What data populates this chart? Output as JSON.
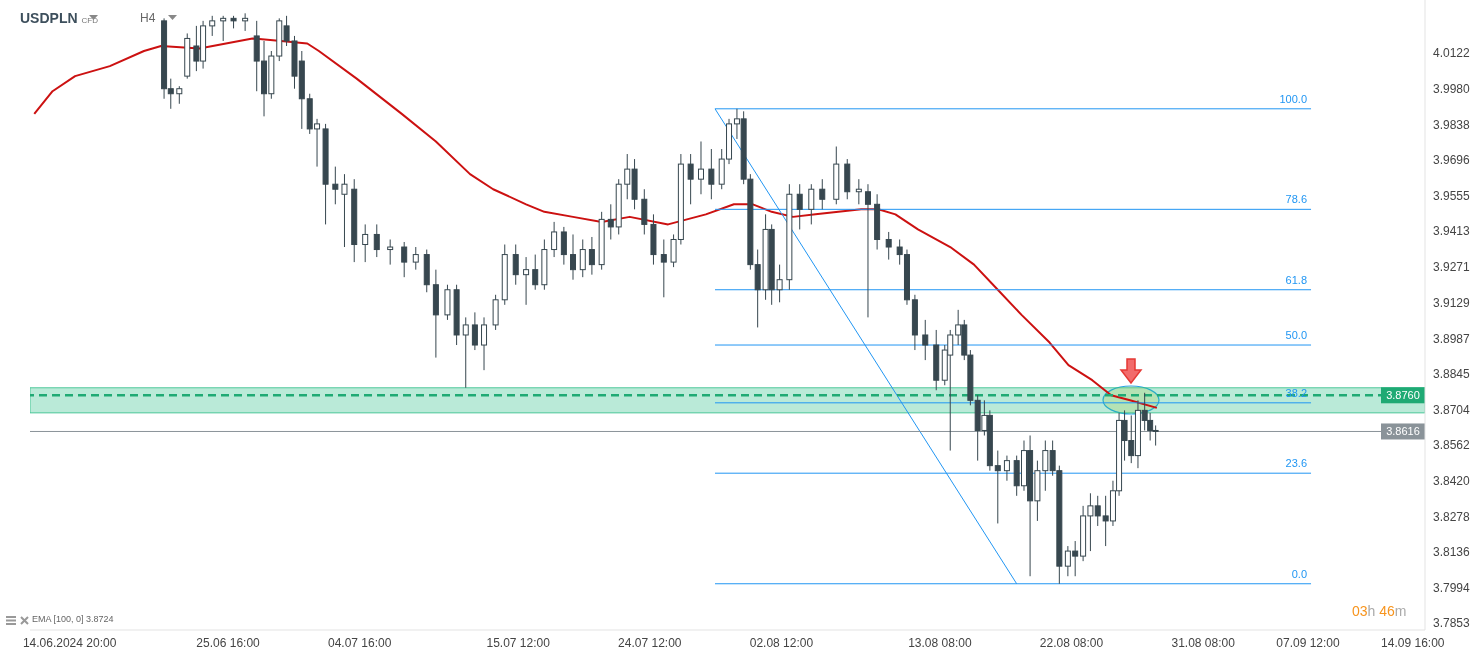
{
  "chart_data": {
    "type": "candlestick",
    "title": "USDPLN",
    "subtitle": "CFD",
    "annotations": [
      "H4",
      "EMA [100, 0] 3.8724",
      "03h 46m",
      {
        "text": "100.0",
        "x": "2024-09-07T17:00",
        "y": 3.99
      },
      {
        "text": "78.6",
        "x": "2024-09-07T17:00",
        "y": 3.95
      },
      {
        "text": "61.8",
        "x": "2024-09-07T17:00",
        "y": 3.918
      },
      {
        "text": "50.0",
        "x": "2024-09-07T17:00",
        "y": 3.896
      },
      {
        "text": "38.2",
        "x": "2024-09-07T17:00",
        "y": 3.873
      },
      {
        "text": "23.6",
        "x": "2024-09-07T17:00",
        "y": 3.845
      },
      {
        "text": "0.0",
        "x": "2024-09-07T17:00",
        "y": 3.801
      }
    ],
    "xlim": [
      "2024-06-12T03:00",
      "2024-09-15T12:00"
    ],
    "xticks": [
      {
        "value": "2024-06-14T20:00",
        "label": "14.06.2024 20:00"
      },
      {
        "value": "2024-06-25T16:00",
        "label": "25.06 16:00"
      },
      {
        "value": "2024-07-04T16:00",
        "label": "04.07 16:00"
      },
      {
        "value": "2024-07-15T12:00",
        "label": "15.07 12:00"
      },
      {
        "value": "2024-07-24T12:00",
        "label": "24.07 12:00"
      },
      {
        "value": "2024-08-02T12:00",
        "label": "02.08 12:00"
      },
      {
        "value": "2024-08-13T08:00",
        "label": "13.08 08:00"
      },
      {
        "value": "2024-08-22T08:00",
        "label": "22.08 08:00"
      },
      {
        "value": "2024-08-31T08:00",
        "label": "31.08 08:00"
      },
      {
        "value": "2024-09-07T12:00",
        "label": "07.09 12:00"
      },
      {
        "value": "2024-09-14T16:00",
        "label": "14.09 16:00"
      }
    ],
    "ylim": [
      3.7826,
      4.0333
    ],
    "yticks": [
      4.0122,
      {
        "value": 3.998,
        "label": "3.9980"
      },
      3.9838,
      3.9696,
      3.9555,
      3.9413,
      3.9271,
      3.9129,
      3.8987,
      3.8845,
      3.8704,
      3.8562,
      {
        "value": 3.842,
        "label": "3.8420"
      },
      3.8278,
      3.8136,
      3.7994,
      3.7853
    ],
    "bands": [
      {
        "axis": "y",
        "from": 3.869,
        "to": 3.879,
        "color": "#2fbf8a"
      }
    ],
    "ref_lines": [
      {
        "axis": "y",
        "value": 3.876,
        "label": "3.8760",
        "color": "#1faa74",
        "line_style": "dashed"
      },
      {
        "axis": "y",
        "value": 3.8616,
        "label": "3.8616",
        "color": "#8a9399",
        "line_style": "solid"
      }
    ],
    "series": [
      {
        "color": "#37474f",
        "x": [
          "2024-06-21T07:00",
          "2024-06-21T18:00",
          "2024-06-22T08:00",
          "2024-06-22T21:00",
          "2024-06-23T12:00",
          "2024-06-23T23:00",
          "2024-06-24T14:00",
          "2024-06-25T08:00",
          "2024-06-26T01:00",
          "2024-06-26T20:00",
          "2024-06-27T15:00",
          "2024-06-28T03:00",
          "2024-06-28T15:00",
          "2024-06-29T04:00",
          "2024-06-29T16:00",
          "2024-06-30T05:00",
          "2024-06-30T17:00",
          "2024-07-01T06:00",
          "2024-07-01T18:00",
          "2024-07-02T08:00",
          "2024-07-03T00:00",
          "2024-07-03T15:00",
          "2024-07-04T07:00",
          "2024-07-05T01:00",
          "2024-07-05T20:00",
          "2024-07-06T18:00",
          "2024-07-07T17:00",
          "2024-07-08T12:00",
          "2024-07-09T06:00",
          "2024-07-09T21:00",
          "2024-07-10T16:00",
          "2024-07-11T07:00",
          "2024-07-11T22:00",
          "2024-07-12T13:00",
          "2024-07-13T04:00",
          "2024-07-13T23:00",
          "2024-07-14T14:00",
          "2024-07-15T08:00",
          "2024-07-16T01:00",
          "2024-07-16T16:00",
          "2024-07-17T07:00",
          "2024-07-17T23:00",
          "2024-07-18T15:00",
          "2024-07-19T06:00",
          "2024-07-19T22:00",
          "2024-07-20T13:00",
          "2024-07-21T05:00",
          "2024-07-21T20:00",
          "2024-07-22T09:00",
          "2024-07-22T23:00",
          "2024-07-23T11:00",
          "2024-07-24T03:00",
          "2024-07-24T18:00",
          "2024-07-25T11:00",
          "2024-07-26T03:00",
          "2024-07-26T15:00",
          "2024-07-27T07:00",
          "2024-07-28T00:00",
          "2024-07-28T17:00",
          "2024-07-29T10:00",
          "2024-07-29T22:00",
          "2024-07-30T11:00",
          "2024-07-30T22:00",
          "2024-07-31T09:00",
          "2024-07-31T21:00",
          "2024-08-01T10:00",
          "2024-08-01T20:00",
          "2024-08-02T09:00",
          "2024-08-03T01:00",
          "2024-08-03T18:00",
          "2024-08-04T13:00",
          "2024-08-05T07:00",
          "2024-08-06T06:00",
          "2024-08-07T00:00",
          "2024-08-07T19:00",
          "2024-08-08T10:00",
          "2024-08-09T01:00",
          "2024-08-09T20:00",
          "2024-08-10T14:00",
          "2024-08-11T02:00",
          "2024-08-11T15:00",
          "2024-08-12T08:00",
          "2024-08-13T02:00",
          "2024-08-13T16:00",
          "2024-08-14T01:00",
          "2024-08-14T14:00",
          "2024-08-15T00:00",
          "2024-08-15T10:00",
          "2024-08-15T22:00",
          "2024-08-16T09:00",
          "2024-08-16T18:00",
          "2024-08-17T07:00",
          "2024-08-17T22:00",
          "2024-08-18T14:00",
          "2024-08-19T02:00",
          "2024-08-19T12:00",
          "2024-08-20T00:00",
          "2024-08-20T13:00",
          "2024-08-21T01:00",
          "2024-08-21T12:00",
          "2024-08-22T02:00",
          "2024-08-22T14:00",
          "2024-08-23T03:00",
          "2024-08-23T15:00",
          "2024-08-24T03:00",
          "2024-08-24T16:00",
          "2024-08-25T04:00",
          "2024-08-25T14:00",
          "2024-08-25T23:00",
          "2024-08-26T10:00",
          "2024-08-26T21:00",
          "2024-08-27T08:00",
          "2024-08-27T17:00",
          "2024-08-28T02:00"
        ],
        "ohlc": [
          [
            4.025,
            4.026,
            3.994,
            3.998
          ],
          [
            3.998,
            4.002,
            3.99,
            3.996
          ],
          [
            3.996,
            3.999,
            3.992,
            3.998
          ],
          [
            4.003,
            4.02,
            4.002,
            4.018
          ],
          [
            4.015,
            4.023,
            4.005,
            4.009
          ],
          [
            4.009,
            4.025,
            4.006,
            4.023
          ],
          [
            4.023,
            4.027,
            4.019,
            4.025
          ],
          [
            4.025,
            4.027,
            4.017,
            4.026
          ],
          [
            4.026,
            4.027,
            4.022,
            4.025
          ],
          [
            4.025,
            4.028,
            4.021,
            4.026
          ],
          [
            4.019,
            4.025,
            3.997,
            4.009
          ],
          [
            4.009,
            4.017,
            3.987,
            3.996
          ],
          [
            3.996,
            4.013,
            3.994,
            4.011
          ],
          [
            4.011,
            4.026,
            4.009,
            4.025
          ],
          [
            4.023,
            4.027,
            4.015,
            4.017
          ],
          [
            4.017,
            4.019,
            3.998,
            4.003
          ],
          [
            4.009,
            4.013,
            3.982,
            3.994
          ],
          [
            3.994,
            3.996,
            3.98,
            3.982
          ],
          [
            3.982,
            3.986,
            3.967,
            3.984
          ],
          [
            3.982,
            3.984,
            3.944,
            3.96
          ],
          [
            3.96,
            3.967,
            3.952,
            3.958
          ],
          [
            3.956,
            3.964,
            3.935,
            3.96
          ],
          [
            3.958,
            3.962,
            3.929,
            3.936
          ],
          [
            3.936,
            3.944,
            3.929,
            3.94
          ],
          [
            3.94,
            3.944,
            3.931,
            3.934
          ],
          [
            3.934,
            3.938,
            3.928,
            3.935
          ],
          [
            3.935,
            3.937,
            3.923,
            3.929
          ],
          [
            3.929,
            3.935,
            3.926,
            3.932
          ],
          [
            3.932,
            3.934,
            3.917,
            3.92
          ],
          [
            3.92,
            3.926,
            3.891,
            3.908
          ],
          [
            3.908,
            3.92,
            3.906,
            3.918
          ],
          [
            3.918,
            3.92,
            3.896,
            3.9
          ],
          [
            3.9,
            3.907,
            3.879,
            3.904
          ],
          [
            3.904,
            3.909,
            3.894,
            3.896
          ],
          [
            3.896,
            3.907,
            3.886,
            3.904
          ],
          [
            3.904,
            3.916,
            3.902,
            3.914
          ],
          [
            3.914,
            3.936,
            3.912,
            3.932
          ],
          [
            3.932,
            3.936,
            3.92,
            3.924
          ],
          [
            3.924,
            3.931,
            3.912,
            3.926
          ],
          [
            3.926,
            3.932,
            3.918,
            3.92
          ],
          [
            3.92,
            3.938,
            3.918,
            3.934
          ],
          [
            3.934,
            3.945,
            3.931,
            3.941
          ],
          [
            3.941,
            3.943,
            3.928,
            3.932
          ],
          [
            3.932,
            3.94,
            3.922,
            3.926
          ],
          [
            3.926,
            3.938,
            3.923,
            3.934
          ],
          [
            3.934,
            3.939,
            3.924,
            3.928
          ],
          [
            3.928,
            3.949,
            3.926,
            3.946
          ],
          [
            3.946,
            3.952,
            3.938,
            3.943
          ],
          [
            3.943,
            3.962,
            3.94,
            3.96
          ],
          [
            3.96,
            3.972,
            3.954,
            3.966
          ],
          [
            3.966,
            3.97,
            3.95,
            3.954
          ],
          [
            3.954,
            3.958,
            3.94,
            3.944
          ],
          [
            3.944,
            3.948,
            3.928,
            3.932
          ],
          [
            3.932,
            3.938,
            3.915,
            3.929
          ],
          [
            3.929,
            3.94,
            3.927,
            3.938
          ],
          [
            3.938,
            3.972,
            3.936,
            3.968
          ],
          [
            3.968,
            3.972,
            3.952,
            3.962
          ],
          [
            3.962,
            3.977,
            3.956,
            3.966
          ],
          [
            3.966,
            3.974,
            3.954,
            3.96
          ],
          [
            3.96,
            3.974,
            3.958,
            3.97
          ],
          [
            3.97,
            3.986,
            3.968,
            3.984
          ],
          [
            3.984,
            3.99,
            3.978,
            3.986
          ],
          [
            3.986,
            3.989,
            3.96,
            3.962
          ],
          [
            3.962,
            3.964,
            3.926,
            3.928
          ],
          [
            3.928,
            3.934,
            3.903,
            3.918
          ],
          [
            3.918,
            3.948,
            3.914,
            3.942
          ],
          [
            3.942,
            3.944,
            3.912,
            3.918
          ],
          [
            3.918,
            3.928,
            3.913,
            3.922
          ],
          [
            3.922,
            3.96,
            3.918,
            3.956
          ],
          [
            3.956,
            3.96,
            3.942,
            3.95
          ],
          [
            3.95,
            3.96,
            3.944,
            3.958
          ],
          [
            3.958,
            3.962,
            3.95,
            3.954
          ],
          [
            3.954,
            3.975,
            3.952,
            3.968
          ],
          [
            3.968,
            3.97,
            3.954,
            3.957
          ],
          [
            3.957,
            3.962,
            3.952,
            3.958
          ],
          [
            3.957,
            3.96,
            3.907,
            3.952
          ],
          [
            3.952,
            3.956,
            3.934,
            3.938
          ],
          [
            3.938,
            3.941,
            3.93,
            3.935
          ],
          [
            3.935,
            3.938,
            3.928,
            3.932
          ],
          [
            3.932,
            3.934,
            3.912,
            3.914
          ],
          [
            3.914,
            3.916,
            3.894,
            3.9
          ],
          [
            3.9,
            3.906,
            3.89,
            3.896
          ],
          [
            3.896,
            3.902,
            3.878,
            3.882
          ],
          [
            3.882,
            3.896,
            3.88,
            3.894
          ],
          [
            3.892,
            3.902,
            3.854,
            3.9
          ],
          [
            3.9,
            3.91,
            3.896,
            3.904
          ],
          [
            3.904,
            3.906,
            3.89,
            3.892
          ],
          [
            3.892,
            3.894,
            3.872,
            3.874
          ],
          [
            3.874,
            3.876,
            3.85,
            3.862
          ],
          [
            3.862,
            3.874,
            3.86,
            3.868
          ],
          [
            3.868,
            3.87,
            3.846,
            3.848
          ],
          [
            3.848,
            3.854,
            3.825,
            3.846
          ],
          [
            3.846,
            3.852,
            3.842,
            3.85
          ],
          [
            3.85,
            3.852,
            3.836,
            3.84
          ],
          [
            3.84,
            3.858,
            3.838,
            3.854
          ],
          [
            3.854,
            3.86,
            3.804,
            3.834
          ],
          [
            3.834,
            3.85,
            3.826,
            3.846
          ],
          [
            3.846,
            3.858,
            3.838,
            3.854
          ],
          [
            3.854,
            3.858,
            3.844,
            3.846
          ],
          [
            3.846,
            3.848,
            3.801,
            3.808
          ],
          [
            3.808,
            3.816,
            3.804,
            3.814
          ],
          [
            3.814,
            3.818,
            3.804,
            3.812
          ],
          [
            3.812,
            3.832,
            3.81,
            3.828
          ],
          [
            3.828,
            3.837,
            3.814,
            3.832
          ],
          [
            3.832,
            3.836,
            3.824,
            3.828
          ],
          [
            3.828,
            3.836,
            3.816,
            3.826
          ],
          [
            3.826,
            3.842,
            3.824,
            3.838
          ],
          [
            3.838,
            3.869,
            3.836,
            3.866
          ],
          [
            3.866,
            3.87,
            3.85,
            3.858
          ],
          [
            3.858,
            3.868,
            3.849,
            3.852
          ],
          [
            3.852,
            3.874,
            3.847,
            3.87
          ],
          [
            3.87,
            3.877,
            3.862,
            3.866
          ],
          [
            3.866,
            3.869,
            3.858,
            3.862
          ],
          [
            3.862,
            3.864,
            3.856,
            3.862
          ]
        ]
      },
      {
        "type": "line",
        "color": "#cc1111",
        "x": [
          "2024-06-12T10:00",
          "2024-06-13T16:00",
          "2024-06-15T05:00",
          "2024-06-17T14:00",
          "2024-06-19T22:00",
          "2024-06-21T02:00",
          "2024-06-23T17:00",
          "2024-06-27T08:00",
          "2024-06-29T07:00",
          "2024-07-01T02:00",
          "2024-07-01T21:00",
          "2024-07-04T11:00",
          "2024-07-07T13:00",
          "2024-07-09T21:00",
          "2024-07-12T05:00",
          "2024-07-13T19:00",
          "2024-07-16T01:00",
          "2024-07-17T07:00",
          "2024-07-19T06:00",
          "2024-07-21T05:00",
          "2024-07-23T03:00",
          "2024-07-25T18:00",
          "2024-07-28T08:00",
          "2024-07-30T06:00",
          "2024-07-31T13:00",
          "2024-08-01T20:00",
          "2024-08-03T07:00",
          "2024-08-04T20:00",
          "2024-08-07T23:00",
          "2024-08-09T03:00",
          "2024-08-10T07:00",
          "2024-08-11T20:00",
          "2024-08-14T01:00",
          "2024-08-15T16:00",
          "2024-08-17T07:00",
          "2024-08-18T22:00",
          "2024-08-20T20:00",
          "2024-08-22T03:00",
          "2024-08-23T18:00",
          "2024-08-25T01:00",
          "2024-08-26T08:00",
          "2024-08-28T04:00"
        ],
        "values": [
          3.988,
          3.997,
          4.003,
          4.007,
          4.013,
          4.015,
          4.014,
          4.018,
          4.017,
          4.016,
          4.013,
          4.002,
          3.988,
          3.977,
          3.964,
          3.958,
          3.952,
          3.949,
          3.947,
          3.945,
          3.947,
          3.944,
          3.948,
          3.952,
          3.952,
          3.949,
          3.947,
          3.948,
          3.95,
          3.95,
          3.948,
          3.942,
          3.935,
          3.928,
          3.918,
          3.908,
          3.897,
          3.888,
          3.882,
          3.876,
          3.874,
          3.871
        ]
      },
      {
        "type": "line",
        "color": "#2196f3",
        "x": [
          "2024-07-28T23:00",
          "2024-08-18T14:00"
        ],
        "values": [
          3.99,
          3.801
        ]
      },
      {
        "type": "line",
        "color": "#2196f3",
        "x": [
          "2024-07-28T23:00",
          "2024-09-07T17:00"
        ],
        "values": [
          3.99,
          3.99
        ]
      },
      {
        "type": "line",
        "color": "#2196f3",
        "x": [
          "2024-07-28T23:00",
          "2024-09-07T17:00"
        ],
        "values": [
          3.95,
          3.95
        ]
      },
      {
        "type": "line",
        "color": "#2196f3",
        "x": [
          "2024-07-28T23:00",
          "2024-09-07T17:00"
        ],
        "values": [
          3.918,
          3.918
        ]
      },
      {
        "type": "line",
        "color": "#2196f3",
        "x": [
          "2024-07-28T23:00",
          "2024-09-07T17:00"
        ],
        "values": [
          3.896,
          3.896
        ]
      },
      {
        "type": "line",
        "color": "#2196f3",
        "x": [
          "2024-07-28T23:00",
          "2024-09-07T17:00"
        ],
        "values": [
          3.873,
          3.873
        ]
      },
      {
        "type": "line",
        "color": "#2196f3",
        "x": [
          "2024-07-28T23:00",
          "2024-09-07T17:00"
        ],
        "values": [
          3.845,
          3.845
        ]
      },
      {
        "type": "line",
        "color": "#2196f3",
        "x": [
          "2024-07-28T23:00",
          "2024-09-07T17:00"
        ],
        "values": [
          3.801,
          3.801
        ]
      }
    ]
  }
}
